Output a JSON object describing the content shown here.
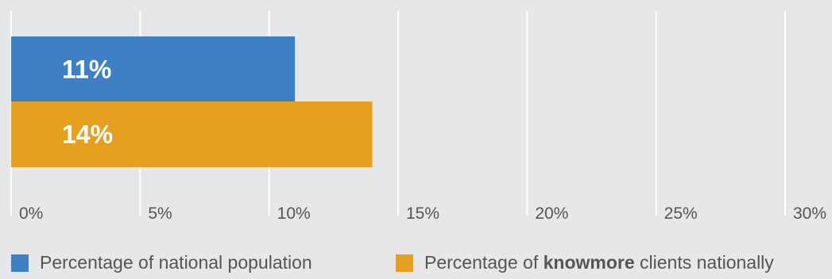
{
  "chart_data": {
    "type": "bar",
    "orientation": "horizontal",
    "categories": [
      "Percentage of national population",
      "Percentage of knowmore clients nationally"
    ],
    "values": [
      11,
      14
    ],
    "data_labels": [
      "11%",
      "14%"
    ],
    "xlim": [
      0,
      30
    ],
    "xticks": [
      0,
      5,
      10,
      15,
      20,
      25,
      30
    ],
    "xtick_labels": [
      "0%",
      "5%",
      "10%",
      "15%",
      "20%",
      "25%",
      "30%"
    ],
    "grid": true,
    "colors": [
      "#3f7fc4",
      "#e6a020"
    ],
    "legend_position": "bottom"
  },
  "legend": {
    "item0": "Percentage of national population",
    "item1_pre": "Percentage of ",
    "item1_bold": "knowmore",
    "item1_post": " clients nationally"
  },
  "colors": {
    "background": "#e6e7e8",
    "grid": "#ffffff",
    "tick_text": "#555555",
    "label_text": "#ffffff"
  }
}
